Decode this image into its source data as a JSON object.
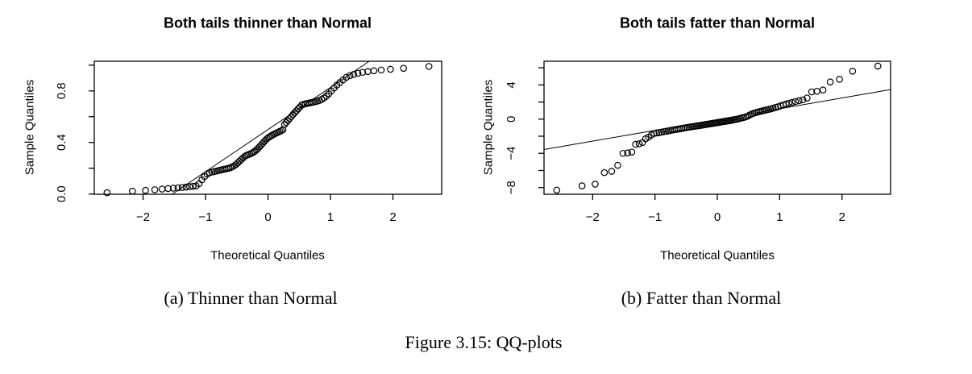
{
  "figure": {
    "caption": "Figure 3.15: QQ-plots",
    "caption_a": "(a) Thinner than Normal",
    "caption_b": "(b) Fatter than Normal"
  },
  "chart_data": [
    {
      "type": "scatter",
      "title": "Both tails thinner than Normal",
      "xlabel": "Theoretical Quantiles",
      "ylabel": "Sample Quantiles",
      "xlim": [
        -2.78,
        2.78
      ],
      "ylim": [
        -0.002,
        1.03
      ],
      "grid": false,
      "xticks": [
        -2,
        -1,
        0,
        1,
        2
      ],
      "xtick_labels": [
        "−2",
        "−1",
        "0",
        "1",
        "2"
      ],
      "yticks": [
        0,
        0.2,
        0.4,
        0.6,
        0.8,
        1.0
      ],
      "ytick_labels": [
        "0.0",
        "",
        "0.4",
        "",
        "0.8",
        ""
      ],
      "reference_line": {
        "slope": 0.327,
        "intercept": 0.5
      },
      "points": [
        [
          -2.576,
          0.01
        ],
        [
          -2.17,
          0.022
        ],
        [
          -1.96,
          0.028
        ],
        [
          -1.812,
          0.033
        ],
        [
          -1.695,
          0.038
        ],
        [
          -1.598,
          0.042
        ],
        [
          -1.514,
          0.045
        ],
        [
          -1.44,
          0.048
        ],
        [
          -1.372,
          0.051
        ],
        [
          -1.311,
          0.054
        ],
        [
          -1.254,
          0.057
        ],
        [
          -1.2,
          0.06
        ],
        [
          -1.15,
          0.063
        ],
        [
          -1.103,
          0.08
        ],
        [
          -1.058,
          0.11
        ],
        [
          -1.015,
          0.135
        ],
        [
          -0.974,
          0.155
        ],
        [
          -0.935,
          0.165
        ],
        [
          -0.896,
          0.17
        ],
        [
          -0.86,
          0.174
        ],
        [
          -0.824,
          0.178
        ],
        [
          -0.789,
          0.182
        ],
        [
          -0.755,
          0.186
        ],
        [
          -0.722,
          0.19
        ],
        [
          -0.69,
          0.193
        ],
        [
          -0.659,
          0.196
        ],
        [
          -0.628,
          0.2
        ],
        [
          -0.598,
          0.205
        ],
        [
          -0.568,
          0.212
        ],
        [
          -0.539,
          0.22
        ],
        [
          -0.51,
          0.23
        ],
        [
          -0.482,
          0.242
        ],
        [
          -0.454,
          0.255
        ],
        [
          -0.426,
          0.268
        ],
        [
          -0.399,
          0.28
        ],
        [
          -0.372,
          0.292
        ],
        [
          -0.345,
          0.3
        ],
        [
          -0.319,
          0.305
        ],
        [
          -0.292,
          0.31
        ],
        [
          -0.266,
          0.316
        ],
        [
          -0.24,
          0.322
        ],
        [
          -0.215,
          0.33
        ],
        [
          -0.189,
          0.34
        ],
        [
          -0.164,
          0.352
        ],
        [
          -0.138,
          0.365
        ],
        [
          -0.113,
          0.378
        ],
        [
          -0.088,
          0.392
        ],
        [
          -0.063,
          0.405
        ],
        [
          -0.038,
          0.418
        ],
        [
          -0.013,
          0.43
        ],
        [
          0.013,
          0.44
        ],
        [
          0.038,
          0.448
        ],
        [
          0.063,
          0.455
        ],
        [
          0.088,
          0.462
        ],
        [
          0.113,
          0.468
        ],
        [
          0.138,
          0.474
        ],
        [
          0.164,
          0.48
        ],
        [
          0.189,
          0.486
        ],
        [
          0.215,
          0.492
        ],
        [
          0.24,
          0.5
        ],
        [
          0.266,
          0.54
        ],
        [
          0.292,
          0.555
        ],
        [
          0.319,
          0.57
        ],
        [
          0.345,
          0.585
        ],
        [
          0.372,
          0.6
        ],
        [
          0.399,
          0.615
        ],
        [
          0.426,
          0.63
        ],
        [
          0.454,
          0.645
        ],
        [
          0.482,
          0.66
        ],
        [
          0.51,
          0.675
        ],
        [
          0.539,
          0.69
        ],
        [
          0.568,
          0.696
        ],
        [
          0.598,
          0.7
        ],
        [
          0.628,
          0.703
        ],
        [
          0.659,
          0.706
        ],
        [
          0.69,
          0.709
        ],
        [
          0.722,
          0.712
        ],
        [
          0.755,
          0.716
        ],
        [
          0.789,
          0.72
        ],
        [
          0.824,
          0.726
        ],
        [
          0.86,
          0.734
        ],
        [
          0.896,
          0.745
        ],
        [
          0.935,
          0.76
        ],
        [
          0.974,
          0.778
        ],
        [
          1.015,
          0.8
        ],
        [
          1.058,
          0.822
        ],
        [
          1.103,
          0.845
        ],
        [
          1.15,
          0.865
        ],
        [
          1.2,
          0.885
        ],
        [
          1.254,
          0.905
        ],
        [
          1.311,
          0.918
        ],
        [
          1.372,
          0.928
        ],
        [
          1.44,
          0.937
        ],
        [
          1.514,
          0.944
        ],
        [
          1.598,
          0.95
        ],
        [
          1.695,
          0.956
        ],
        [
          1.812,
          0.962
        ],
        [
          1.96,
          0.968
        ],
        [
          2.17,
          0.975
        ],
        [
          2.576,
          0.99
        ]
      ]
    },
    {
      "type": "scatter",
      "title": "Both tails fatter than Normal",
      "xlabel": "Theoretical Quantiles",
      "ylabel": "Sample Quantiles",
      "xlim": [
        -2.78,
        2.78
      ],
      "ylim": [
        -8.78,
        6.76
      ],
      "grid": false,
      "xticks": [
        -2,
        -1,
        0,
        1,
        2
      ],
      "xtick_labels": [
        "−2",
        "−1",
        "0",
        "1",
        "2"
      ],
      "yticks": [
        -8,
        -6,
        -4,
        -2,
        0,
        2,
        4,
        6
      ],
      "ytick_labels": [
        "−8",
        "",
        "−4",
        "",
        "0",
        "",
        "4",
        ""
      ],
      "reference_line": {
        "slope": 1.26,
        "intercept": -0.05
      },
      "points": [
        [
          -2.576,
          -8.3
        ],
        [
          -2.17,
          -7.8
        ],
        [
          -1.96,
          -7.6
        ],
        [
          -1.812,
          -6.25
        ],
        [
          -1.695,
          -6.1
        ],
        [
          -1.598,
          -5.4
        ],
        [
          -1.514,
          -4.0
        ],
        [
          -1.44,
          -3.95
        ],
        [
          -1.372,
          -3.85
        ],
        [
          -1.311,
          -2.95
        ],
        [
          -1.254,
          -2.88
        ],
        [
          -1.2,
          -2.74
        ],
        [
          -1.15,
          -2.3
        ],
        [
          -1.103,
          -2.1
        ],
        [
          -1.058,
          -1.85
        ],
        [
          -1.015,
          -1.68
        ],
        [
          -0.974,
          -1.62
        ],
        [
          -0.935,
          -1.58
        ],
        [
          -0.896,
          -1.52
        ],
        [
          -0.86,
          -1.47
        ],
        [
          -0.824,
          -1.43
        ],
        [
          -0.789,
          -1.38
        ],
        [
          -0.755,
          -1.33
        ],
        [
          -0.722,
          -1.28
        ],
        [
          -0.69,
          -1.24
        ],
        [
          -0.659,
          -1.2
        ],
        [
          -0.628,
          -1.17
        ],
        [
          -0.598,
          -1.13
        ],
        [
          -0.568,
          -1.09
        ],
        [
          -0.539,
          -1.05
        ],
        [
          -0.51,
          -1.01
        ],
        [
          -0.482,
          -0.97
        ],
        [
          -0.454,
          -0.94
        ],
        [
          -0.426,
          -0.91
        ],
        [
          -0.399,
          -0.88
        ],
        [
          -0.372,
          -0.85
        ],
        [
          -0.345,
          -0.82
        ],
        [
          -0.319,
          -0.79
        ],
        [
          -0.292,
          -0.76
        ],
        [
          -0.266,
          -0.73
        ],
        [
          -0.24,
          -0.7
        ],
        [
          -0.215,
          -0.67
        ],
        [
          -0.189,
          -0.64
        ],
        [
          -0.164,
          -0.61
        ],
        [
          -0.138,
          -0.58
        ],
        [
          -0.113,
          -0.55
        ],
        [
          -0.088,
          -0.52
        ],
        [
          -0.063,
          -0.49
        ],
        [
          -0.038,
          -0.46
        ],
        [
          -0.013,
          -0.43
        ],
        [
          0.013,
          -0.4
        ],
        [
          0.038,
          -0.37
        ],
        [
          0.063,
          -0.34
        ],
        [
          0.088,
          -0.31
        ],
        [
          0.113,
          -0.28
        ],
        [
          0.138,
          -0.25
        ],
        [
          0.164,
          -0.22
        ],
        [
          0.189,
          -0.19
        ],
        [
          0.215,
          -0.16
        ],
        [
          0.24,
          -0.12
        ],
        [
          0.266,
          -0.08
        ],
        [
          0.292,
          -0.04
        ],
        [
          0.319,
          0.0
        ],
        [
          0.345,
          0.05
        ],
        [
          0.372,
          0.1
        ],
        [
          0.399,
          0.15
        ],
        [
          0.426,
          0.2
        ],
        [
          0.454,
          0.26
        ],
        [
          0.482,
          0.32
        ],
        [
          0.51,
          0.45
        ],
        [
          0.539,
          0.55
        ],
        [
          0.568,
          0.65
        ],
        [
          0.598,
          0.72
        ],
        [
          0.628,
          0.78
        ],
        [
          0.659,
          0.84
        ],
        [
          0.69,
          0.9
        ],
        [
          0.722,
          0.96
        ],
        [
          0.755,
          1.02
        ],
        [
          0.789,
          1.08
        ],
        [
          0.824,
          1.14
        ],
        [
          0.86,
          1.2
        ],
        [
          0.896,
          1.28
        ],
        [
          0.935,
          1.36
        ],
        [
          0.974,
          1.44
        ],
        [
          1.015,
          1.55
        ],
        [
          1.058,
          1.66
        ],
        [
          1.103,
          1.76
        ],
        [
          1.15,
          1.86
        ],
        [
          1.2,
          1.95
        ],
        [
          1.254,
          2.05
        ],
        [
          1.311,
          2.15
        ],
        [
          1.372,
          2.25
        ],
        [
          1.44,
          2.46
        ],
        [
          1.514,
          3.18
        ],
        [
          1.598,
          3.25
        ],
        [
          1.695,
          3.4
        ],
        [
          1.812,
          4.34
        ],
        [
          1.96,
          4.66
        ],
        [
          2.17,
          5.6
        ],
        [
          2.576,
          6.2
        ]
      ]
    }
  ]
}
